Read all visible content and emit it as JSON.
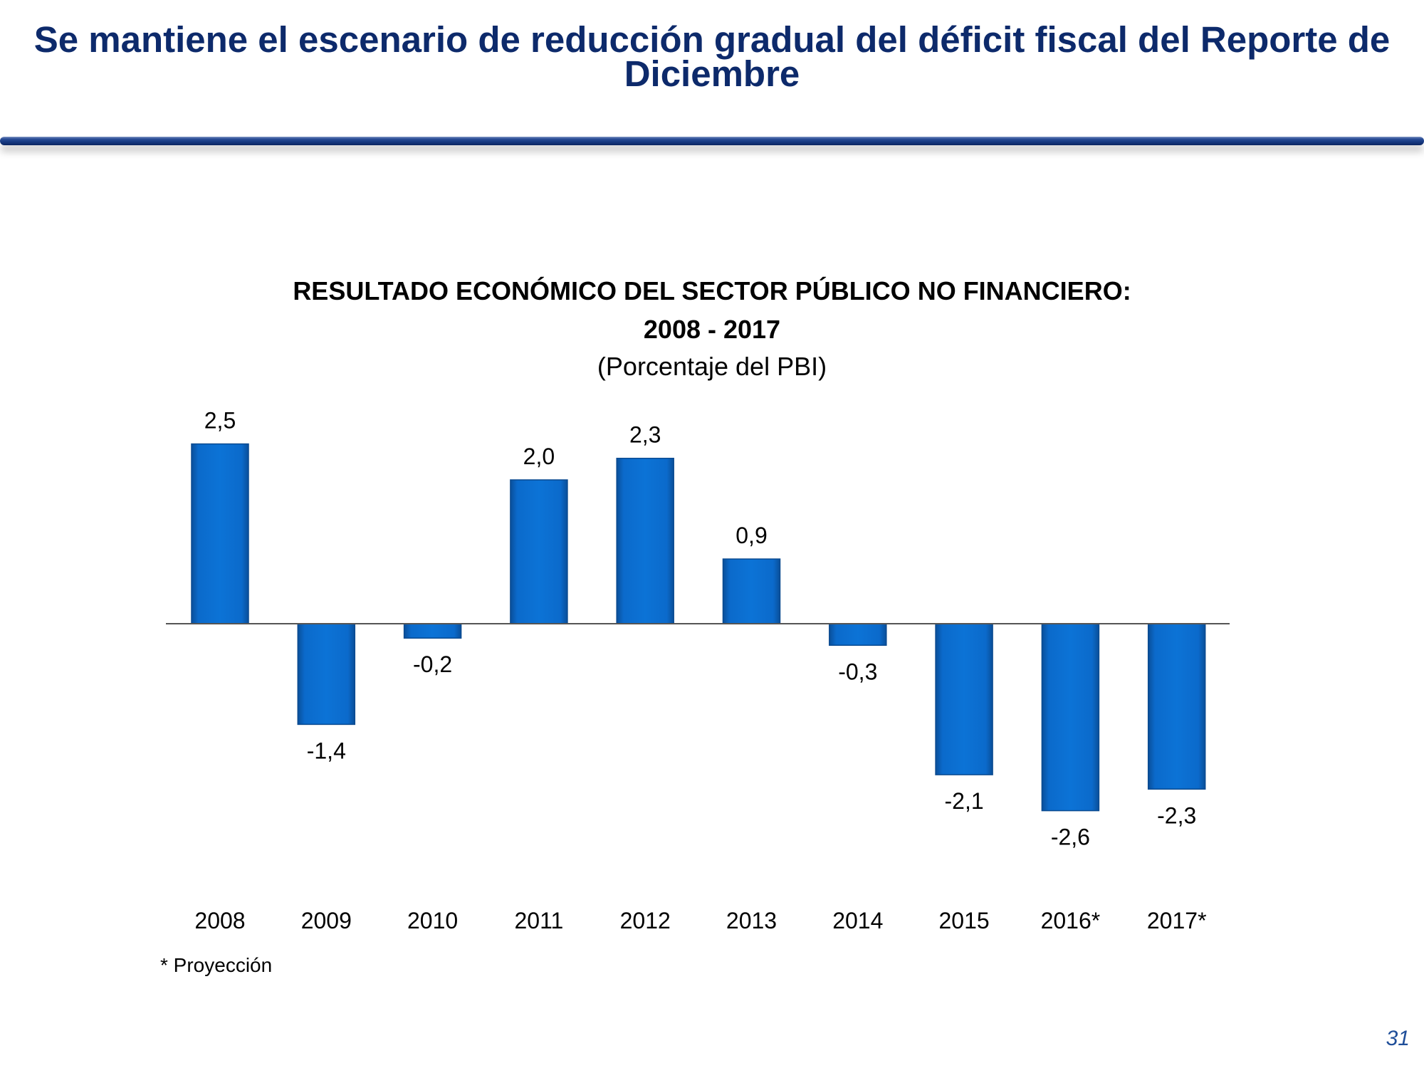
{
  "slide": {
    "title": "Se mantiene el escenario de reducción gradual del déficit fiscal del Reporte de Diciembre",
    "page_number": "31",
    "footnote": "* Proyección"
  },
  "colors": {
    "title_text": "#0d2a6b",
    "bar_fill": "#0a6cc6",
    "axis_line": "#555555"
  },
  "chart_data": {
    "type": "bar",
    "title": "RESULTADO ECONÓMICO DEL SECTOR PÚBLICO NO FINANCIERO: 2008 - 2017",
    "title_line1": "RESULTADO ECONÓMICO DEL SECTOR PÚBLICO NO FINANCIERO:",
    "title_line2": "2008 - 2017",
    "subtitle": "(Porcentaje del PBI)",
    "xlabel": "",
    "ylabel": "",
    "categories": [
      "2008",
      "2009",
      "2010",
      "2011",
      "2012",
      "2013",
      "2014",
      "2015",
      "2016*",
      "2017*"
    ],
    "values": [
      2.5,
      -1.4,
      -0.2,
      2.0,
      2.3,
      0.9,
      -0.3,
      -2.1,
      -2.6,
      -2.3
    ],
    "labels": [
      "2,5",
      "-1,4",
      "-0,2",
      "2,0",
      "2,3",
      "0,9",
      "-0,3",
      "-2,1",
      "-2,6",
      "-2,3"
    ],
    "ylim": [
      -3,
      3
    ],
    "grid": false,
    "legend": "none"
  }
}
